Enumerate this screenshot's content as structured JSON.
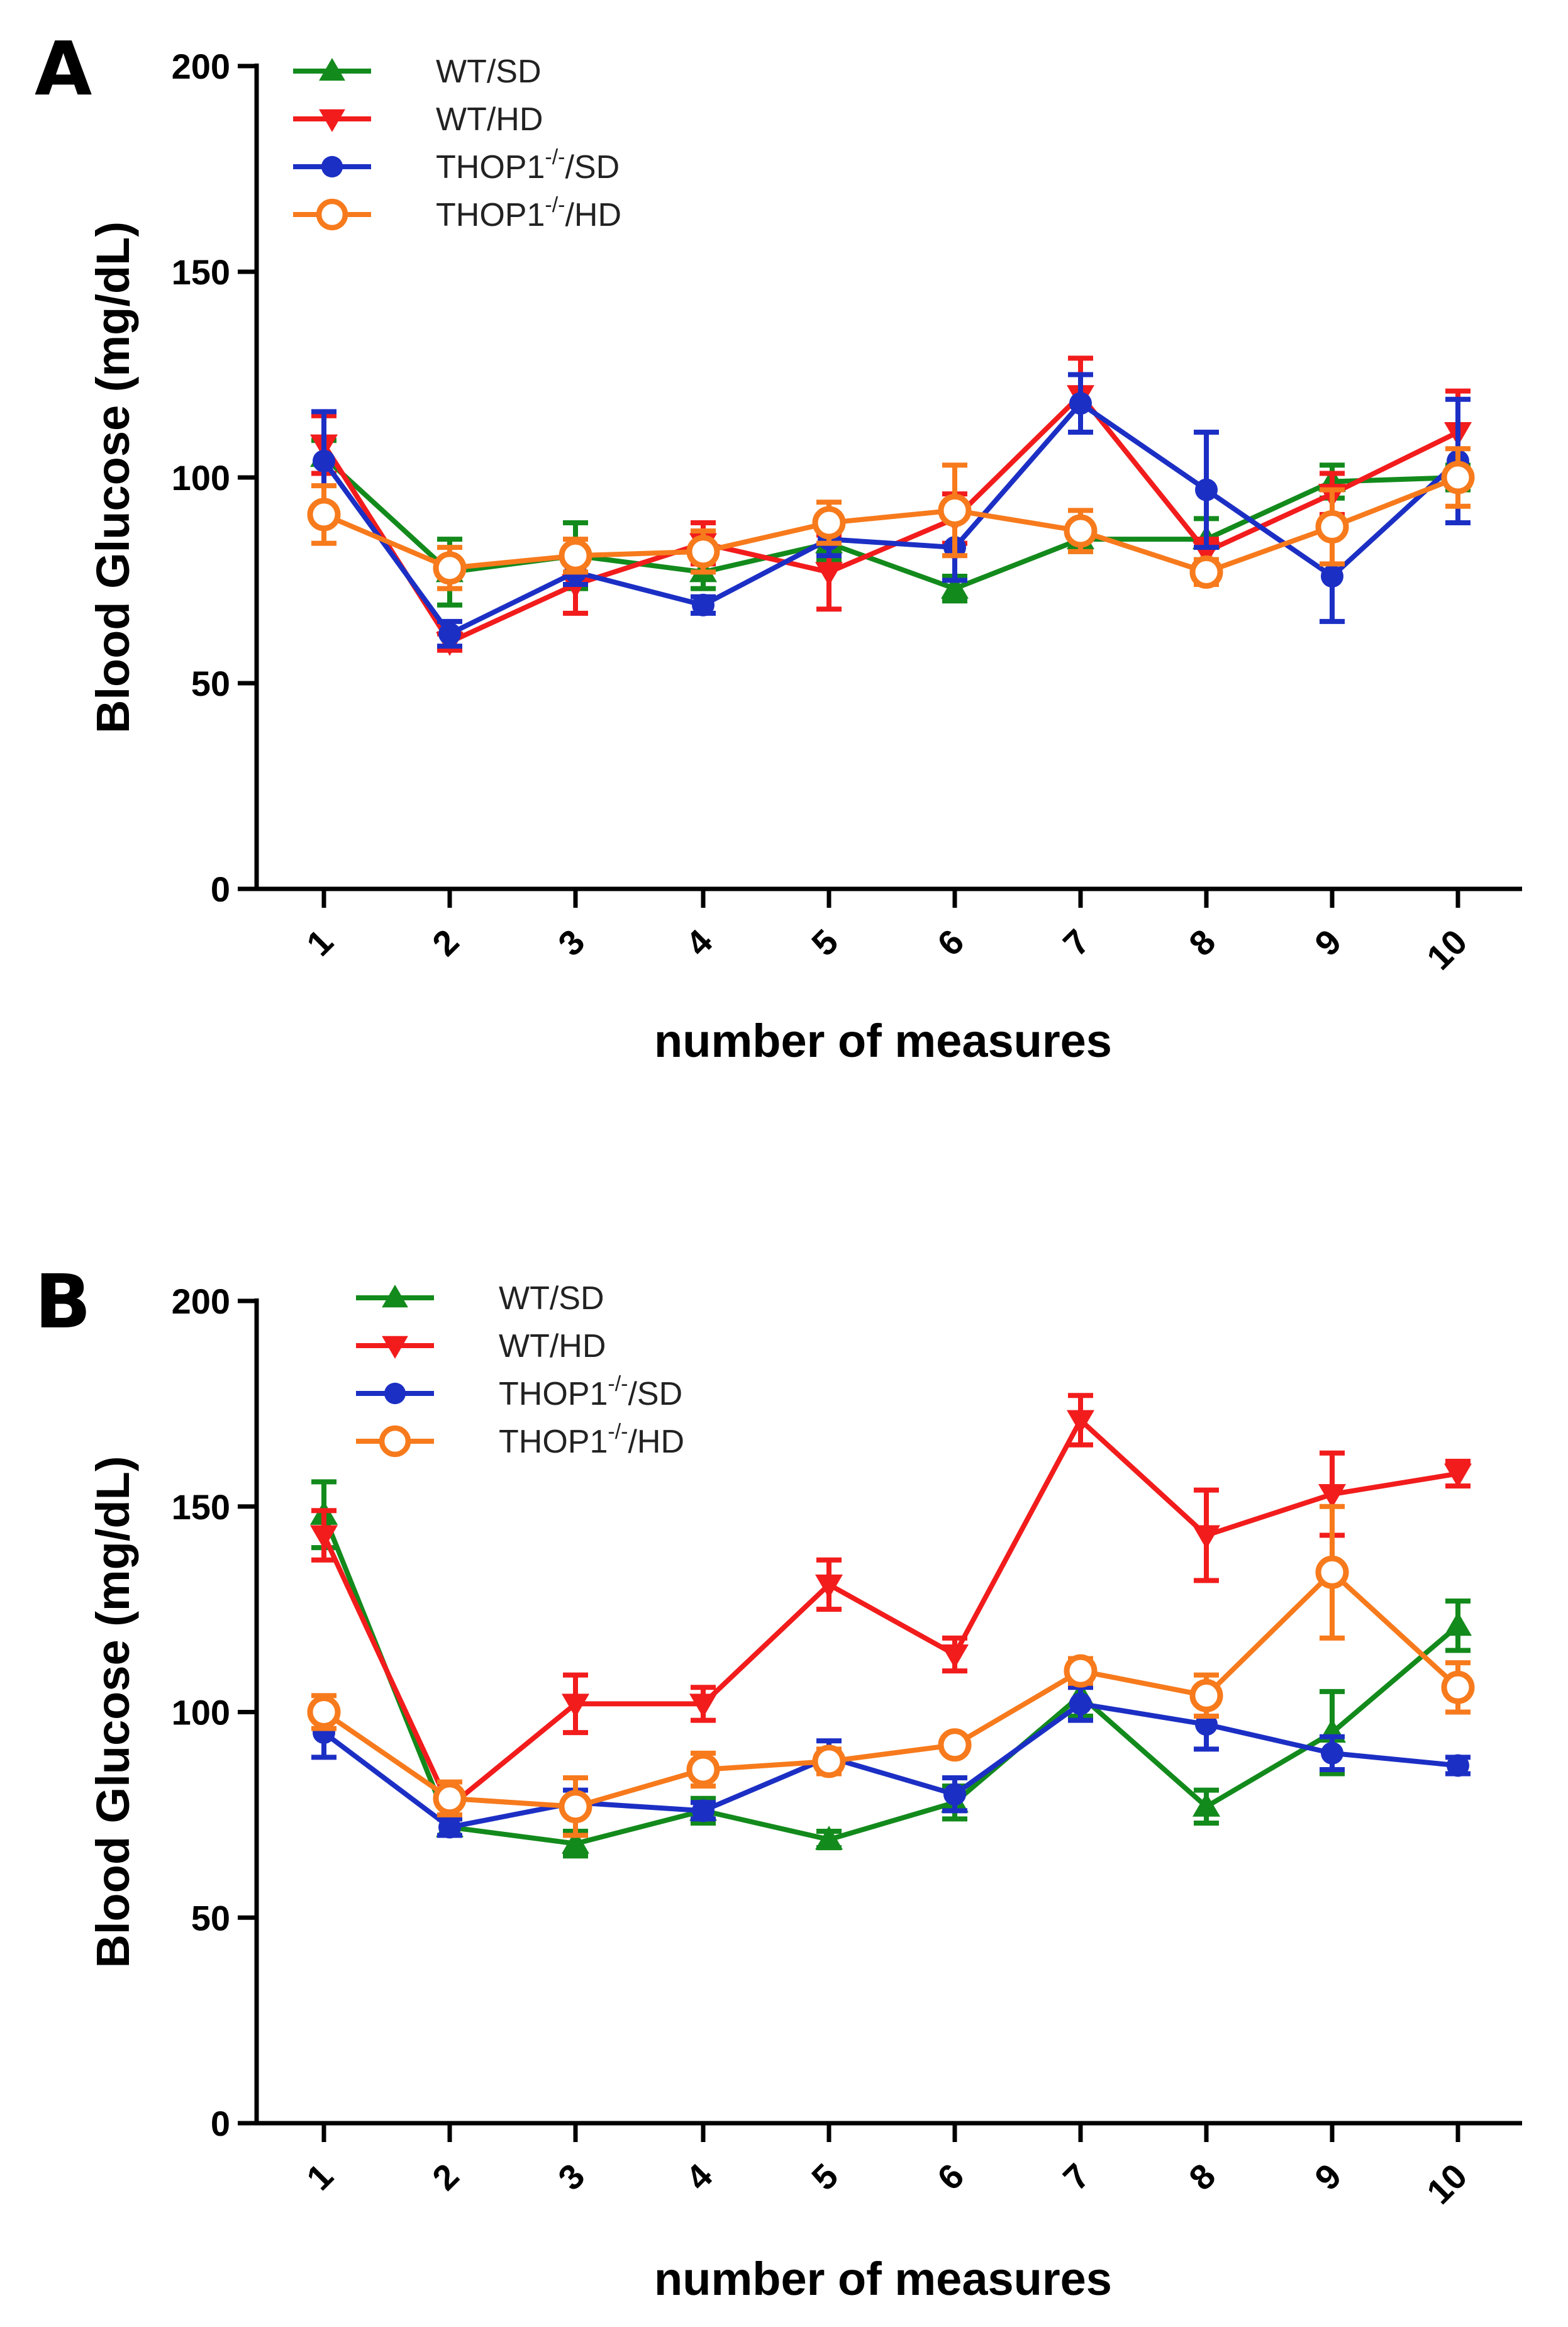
{
  "chart_data": [
    {
      "panel": "A",
      "type": "line",
      "xlabel": "number of measures",
      "ylabel": "Blood Glucose (mg/dL)",
      "x": [
        1,
        2,
        3,
        4,
        5,
        6,
        7,
        8,
        9,
        10
      ],
      "x_tick_labels": [
        "1",
        "2",
        "3",
        "4",
        "5",
        "6",
        "7",
        "8",
        "9",
        "10"
      ],
      "ylim": [
        0,
        200
      ],
      "y_ticks": [
        0,
        50,
        100,
        150,
        200
      ],
      "y_tick_labels": [
        "0",
        "50",
        "100",
        "150",
        "200"
      ],
      "legend": {
        "placement": "top-left",
        "entries": [
          {
            "base": "WT/SD",
            "sup": "",
            "tail": ""
          },
          {
            "base": "WT/HD",
            "sup": "",
            "tail": ""
          },
          {
            "base": "THOP1",
            "sup": "-/-",
            "tail": "/SD"
          },
          {
            "base": "THOP1",
            "sup": "-/-",
            "tail": "/HD"
          }
        ]
      },
      "series": [
        {
          "name": "WT/SD",
          "color": "#138a1c",
          "marker": "triangle-up",
          "values": [
            105,
            77,
            81,
            77,
            84,
            73,
            85,
            85,
            99,
            100
          ],
          "errors": [
            4,
            8,
            8,
            4,
            4,
            3,
            3,
            5,
            4,
            3
          ]
        },
        {
          "name": "WT/HD",
          "color": "#f21c1c",
          "marker": "triangle-down",
          "values": [
            108,
            60,
            74,
            84,
            77,
            90,
            120,
            82,
            96,
            111
          ],
          "errors": [
            7,
            2,
            7,
            5,
            9,
            6,
            9,
            3,
            5,
            10
          ]
        },
        {
          "name": "THOP1-/-/SD",
          "color": "#1c2fc4",
          "marker": "circle",
          "values": [
            104,
            62,
            77,
            69,
            85,
            83,
            118,
            97,
            76,
            104
          ],
          "errors": [
            12,
            3,
            3,
            2,
            4,
            8,
            7,
            14,
            11,
            15
          ]
        },
        {
          "name": "THOP1-/-/HD",
          "color": "#f77a1c",
          "marker": "circle-open",
          "values": [
            91,
            78,
            81,
            82,
            89,
            92,
            87,
            77,
            88,
            100
          ],
          "errors": [
            7,
            5,
            4,
            5,
            5,
            11,
            5,
            3,
            9,
            7
          ]
        }
      ]
    },
    {
      "panel": "B",
      "type": "line",
      "xlabel": "number of measures",
      "ylabel": "Blood Glucose (mg/dL)",
      "x": [
        1,
        2,
        3,
        4,
        5,
        6,
        7,
        8,
        9,
        10
      ],
      "x_tick_labels": [
        "1",
        "2",
        "3",
        "4",
        "5",
        "6",
        "7",
        "8",
        "9",
        "10"
      ],
      "ylim": [
        0,
        200
      ],
      "y_ticks": [
        0,
        50,
        100,
        150,
        200
      ],
      "y_tick_labels": [
        "0",
        "50",
        "100",
        "150",
        "200"
      ],
      "legend": {
        "placement": "top-left",
        "entries": [
          {
            "base": "WT/SD",
            "sup": "",
            "tail": ""
          },
          {
            "base": "WT/HD",
            "sup": "",
            "tail": ""
          },
          {
            "base": "THOP1",
            "sup": "-/-",
            "tail": "/SD"
          },
          {
            "base": "THOP1",
            "sup": "-/-",
            "tail": "/HD"
          }
        ]
      },
      "series": [
        {
          "name": "WT/SD",
          "color": "#138a1c",
          "marker": "triangle-up",
          "values": [
            148,
            72,
            68,
            76,
            69,
            78,
            104,
            77,
            95,
            121
          ],
          "errors": [
            8,
            2,
            3,
            3,
            2,
            4,
            5,
            4,
            10,
            6
          ]
        },
        {
          "name": "WT/HD",
          "color": "#f21c1c",
          "marker": "triangle-down",
          "values": [
            143,
            77,
            102,
            102,
            131,
            114,
            171,
            143,
            153,
            158
          ],
          "errors": [
            6,
            3,
            7,
            4,
            6,
            4,
            6,
            11,
            10,
            3
          ]
        },
        {
          "name": "THOP1-/-/SD",
          "color": "#1c2fc4",
          "marker": "circle",
          "values": [
            95,
            72,
            78,
            76,
            89,
            80,
            102,
            97,
            90,
            87
          ],
          "errors": [
            6,
            2,
            3,
            2,
            4,
            4,
            4,
            6,
            4,
            2
          ]
        },
        {
          "name": "THOP1-/-/HD",
          "color": "#f77a1c",
          "marker": "circle-open",
          "values": [
            100,
            79,
            77,
            86,
            88,
            92,
            110,
            104,
            134,
            106
          ],
          "errors": [
            4,
            4,
            7,
            4,
            3,
            2,
            3,
            5,
            16,
            6
          ]
        }
      ]
    }
  ]
}
